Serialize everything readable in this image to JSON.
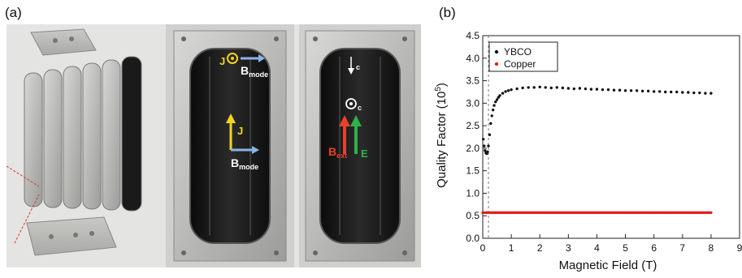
{
  "panels": {
    "a": "(a)",
    "b": "(b)"
  },
  "photo": {
    "labels": {
      "j_top": "J",
      "b_mode_top": "B",
      "b_mode_top_sub": "mode",
      "j_mid": "J",
      "b_mode_mid": "B",
      "b_mode_mid_sub": "mode",
      "c_top": "c",
      "c_mid": "c",
      "b_ext": "B",
      "b_ext_sub": "ext",
      "e_field": "E"
    },
    "colors": {
      "yellow": "#f2d321",
      "blue": "#8ab4e8",
      "red": "#e8412c",
      "green": "#2fb24a"
    }
  },
  "chart_data": {
    "type": "scatter",
    "xlabel": "Magnetic Field (T)",
    "ylabel": "Quality Factor (10",
    "ylabel_sup": "5",
    "ylabel_end": ")",
    "xlim": [
      0,
      9
    ],
    "ylim": [
      0,
      4.5
    ],
    "xticks": [
      "0",
      "1",
      "2",
      "3",
      "4",
      "5",
      "6",
      "7",
      "8",
      "9"
    ],
    "yticks": [
      "0.0",
      "0.5",
      "1.0",
      "1.5",
      "2.0",
      "2.5",
      "3.0",
      "3.5",
      "4.0",
      "4.5"
    ],
    "vline_x": 0.2,
    "legend_position": "top-left",
    "series": [
      {
        "name": "YBCO",
        "color": "#111111",
        "points": [
          [
            0.02,
            2.2
          ],
          [
            0.05,
            2.05
          ],
          [
            0.08,
            1.95
          ],
          [
            0.11,
            1.9
          ],
          [
            0.14,
            1.88
          ],
          [
            0.17,
            1.92
          ],
          [
            0.2,
            2.05
          ],
          [
            0.24,
            2.3
          ],
          [
            0.28,
            2.55
          ],
          [
            0.32,
            2.72
          ],
          [
            0.36,
            2.85
          ],
          [
            0.4,
            2.95
          ],
          [
            0.45,
            3.03
          ],
          [
            0.5,
            3.08
          ],
          [
            0.55,
            3.13
          ],
          [
            0.6,
            3.17
          ],
          [
            0.7,
            3.22
          ],
          [
            0.8,
            3.26
          ],
          [
            0.9,
            3.28
          ],
          [
            1.0,
            3.3
          ],
          [
            1.2,
            3.32
          ],
          [
            1.4,
            3.34
          ],
          [
            1.6,
            3.35
          ],
          [
            1.8,
            3.35
          ],
          [
            2.0,
            3.36
          ],
          [
            2.2,
            3.35
          ],
          [
            2.4,
            3.34
          ],
          [
            2.6,
            3.35
          ],
          [
            2.8,
            3.34
          ],
          [
            3.0,
            3.33
          ],
          [
            3.2,
            3.32
          ],
          [
            3.4,
            3.33
          ],
          [
            3.6,
            3.32
          ],
          [
            3.8,
            3.31
          ],
          [
            4.0,
            3.31
          ],
          [
            4.2,
            3.3
          ],
          [
            4.4,
            3.3
          ],
          [
            4.6,
            3.29
          ],
          [
            4.8,
            3.29
          ],
          [
            5.0,
            3.28
          ],
          [
            5.2,
            3.28
          ],
          [
            5.4,
            3.28
          ],
          [
            5.6,
            3.27
          ],
          [
            5.8,
            3.27
          ],
          [
            6.0,
            3.26
          ],
          [
            6.2,
            3.26
          ],
          [
            6.4,
            3.25
          ],
          [
            6.6,
            3.25
          ],
          [
            6.8,
            3.25
          ],
          [
            7.0,
            3.24
          ],
          [
            7.2,
            3.24
          ],
          [
            7.4,
            3.23
          ],
          [
            7.6,
            3.23
          ],
          [
            7.8,
            3.22
          ],
          [
            8.0,
            3.22
          ]
        ]
      },
      {
        "name": "Copper",
        "color": "#e02222",
        "from": 0.0,
        "to": 8.0,
        "step": 0.05,
        "value": 0.57
      }
    ]
  }
}
